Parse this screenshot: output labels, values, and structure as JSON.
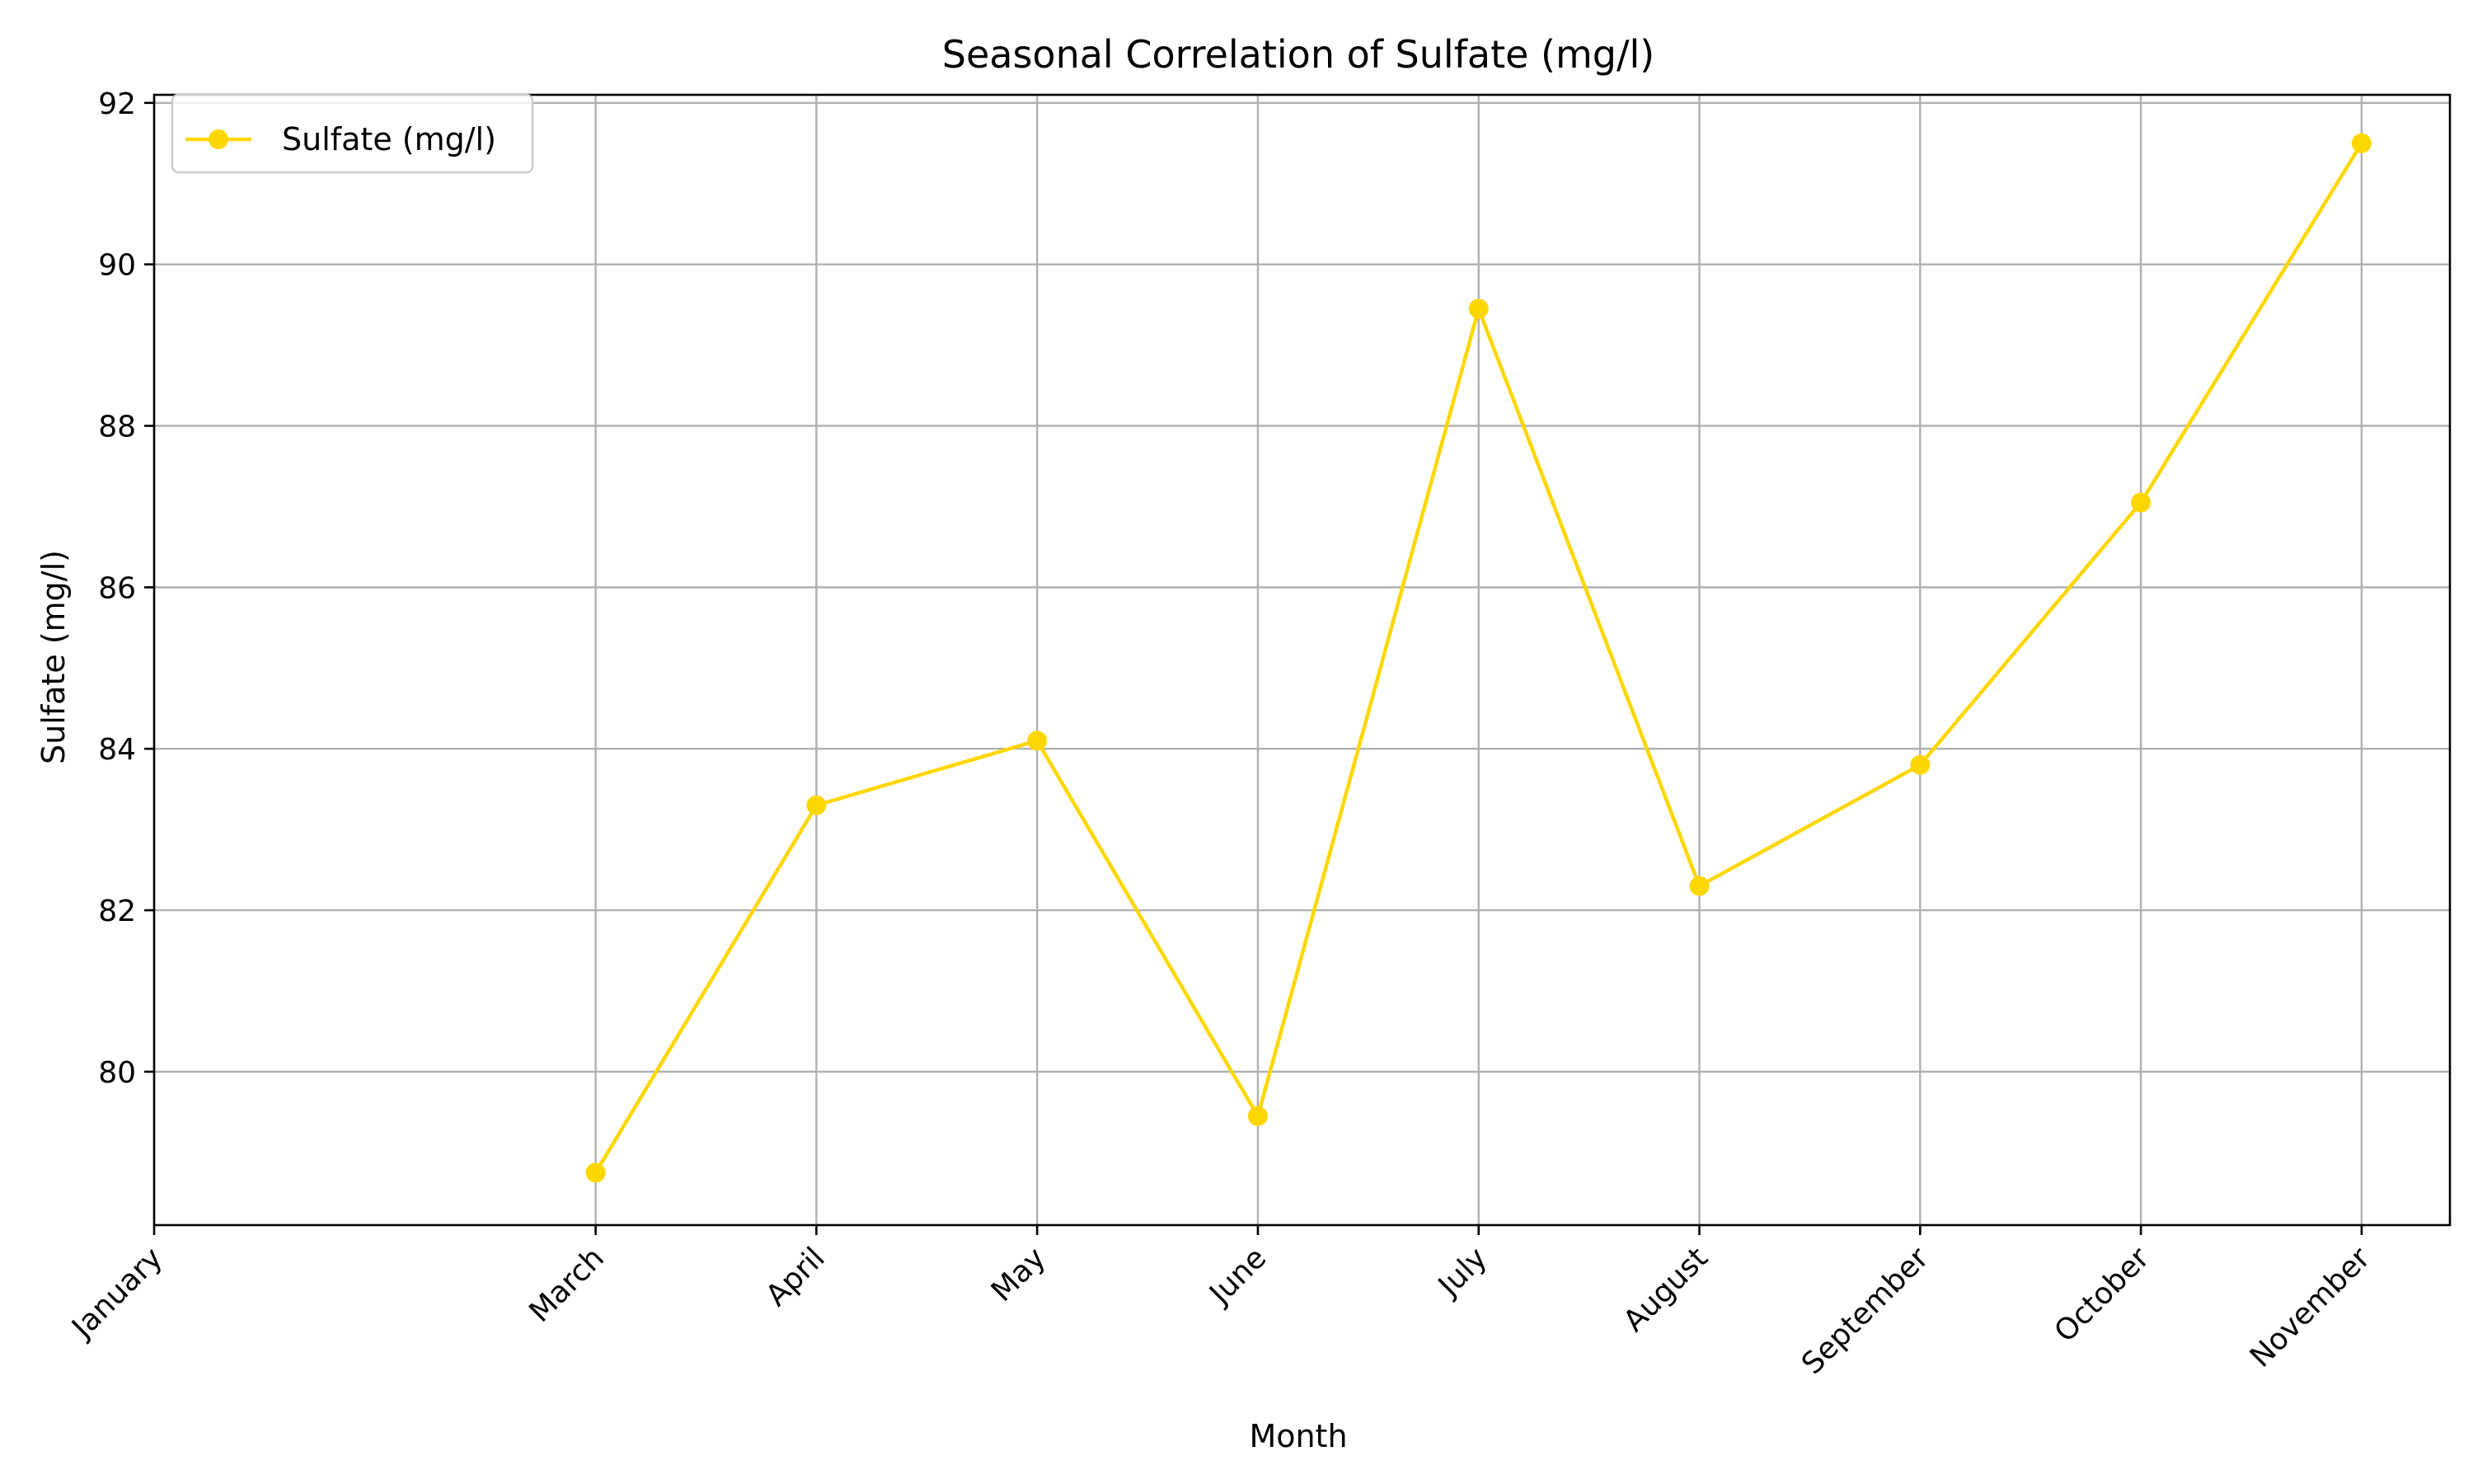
{
  "chart_data": {
    "type": "line",
    "title": "Seasonal Correlation of Sulfate (mg/l)",
    "xlabel": "Month",
    "ylabel": "Sulfate (mg/l)",
    "x_ticks": [
      {
        "label": "January",
        "pos": 0
      },
      {
        "label": "March",
        "pos": 2
      },
      {
        "label": "April",
        "pos": 3
      },
      {
        "label": "May",
        "pos": 4
      },
      {
        "label": "June",
        "pos": 5
      },
      {
        "label": "July",
        "pos": 6
      },
      {
        "label": "August",
        "pos": 7
      },
      {
        "label": "September",
        "pos": 8
      },
      {
        "label": "October",
        "pos": 9
      },
      {
        "label": "November",
        "pos": 10
      }
    ],
    "xlim": [
      0,
      10.4
    ],
    "y_ticks": [
      80,
      82,
      84,
      86,
      88,
      90,
      92
    ],
    "ylim": [
      78.1,
      92.1
    ],
    "grid": true,
    "legend_position": "top-left",
    "series": [
      {
        "name": "Sulfate (mg/l)",
        "color": "#FFD700",
        "marker": "circle",
        "points": [
          {
            "x": "March",
            "y": 78.75
          },
          {
            "x": "April",
            "y": 83.3
          },
          {
            "x": "May",
            "y": 84.1
          },
          {
            "x": "June",
            "y": 79.45
          },
          {
            "x": "July",
            "y": 89.45
          },
          {
            "x": "August",
            "y": 82.3
          },
          {
            "x": "September",
            "y": 83.8
          },
          {
            "x": "October",
            "y": 87.05
          },
          {
            "x": "November",
            "y": 91.5
          }
        ]
      }
    ]
  }
}
